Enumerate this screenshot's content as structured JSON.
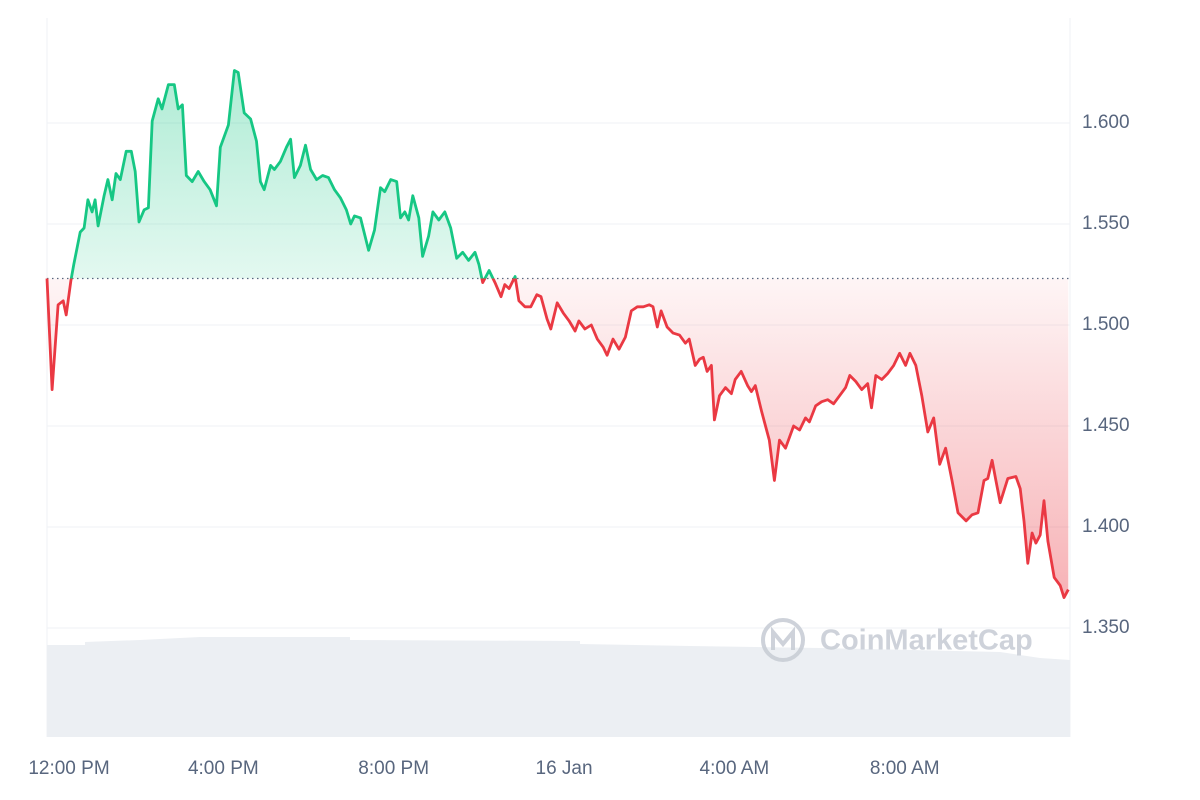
{
  "chart_data": {
    "type": "line",
    "watermark": "CoinMarketCap",
    "baseline": 1.523,
    "up_color": "#16c784",
    "down_color": "#ea3943",
    "xlim": [
      -0.14,
      23.88
    ],
    "xticks": [
      {
        "value": 0,
        "label": "12:00 PM"
      },
      {
        "value": 4,
        "label": "4:00 PM"
      },
      {
        "value": 8,
        "label": "8:00 PM"
      },
      {
        "value": 12,
        "label": "16 Jan"
      },
      {
        "value": 16,
        "label": "4:00 AM"
      },
      {
        "value": 20,
        "label": "8:00 AM"
      }
    ],
    "ylim": [
      1.296,
      1.652
    ],
    "yticks": [
      {
        "value": 1.35,
        "label": "1.350"
      },
      {
        "value": 1.4,
        "label": "1.400"
      },
      {
        "value": 1.45,
        "label": "1.450"
      },
      {
        "value": 1.5,
        "label": "1.500"
      },
      {
        "value": 1.55,
        "label": "1.550"
      },
      {
        "value": 1.6,
        "label": "1.600"
      }
    ],
    "grid": true,
    "x": [
      -0.14,
      -0.02,
      0.12,
      0.24,
      0.31,
      0.42,
      0.49,
      0.64,
      0.73,
      0.82,
      0.92,
      0.99,
      1.06,
      1.2,
      1.29,
      1.39,
      1.48,
      1.58,
      1.72,
      1.84,
      1.93,
      2.02,
      2.14,
      2.24,
      2.33,
      2.47,
      2.56,
      2.71,
      2.85,
      2.94,
      3.04,
      3.13,
      3.27,
      3.41,
      3.55,
      3.69,
      3.84,
      3.93,
      4.12,
      4.26,
      4.35,
      4.49,
      4.64,
      4.78,
      4.87,
      4.96,
      5.11,
      5.2,
      5.34,
      5.48,
      5.58,
      5.67,
      5.81,
      5.93,
      6.05,
      6.19,
      6.33,
      6.47,
      6.61,
      6.75,
      6.89,
      6.99,
      7.08,
      7.22,
      7.41,
      7.55,
      7.69,
      7.79,
      7.93,
      8.07,
      8.16,
      8.26,
      8.35,
      8.45,
      8.59,
      8.68,
      8.82,
      8.92,
      9.06,
      9.2,
      9.34,
      9.48,
      9.62,
      9.76,
      9.91,
      10.0,
      10.09,
      10.24,
      10.38,
      10.52,
      10.61,
      10.71,
      10.85,
      10.94,
      11.08,
      11.22,
      11.36,
      11.46,
      11.6,
      11.69,
      11.84,
      11.98,
      12.12,
      12.26,
      12.35,
      12.49,
      12.64,
      12.78,
      12.92,
      13.01,
      13.15,
      13.29,
      13.44,
      13.58,
      13.72,
      13.86,
      14.0,
      14.09,
      14.19,
      14.28,
      14.42,
      14.56,
      14.71,
      14.85,
      14.94,
      15.08,
      15.18,
      15.27,
      15.36,
      15.46,
      15.53,
      15.65,
      15.79,
      15.93,
      16.02,
      16.16,
      16.31,
      16.4,
      16.49,
      16.64,
      16.82,
      16.94,
      17.06,
      17.2,
      17.39,
      17.53,
      17.67,
      17.76,
      17.91,
      18.05,
      18.19,
      18.33,
      18.47,
      18.61,
      18.71,
      18.85,
      18.99,
      19.13,
      19.22,
      19.32,
      19.46,
      19.6,
      19.74,
      19.88,
      20.02,
      20.12,
      20.26,
      20.4,
      20.54,
      20.68,
      20.82,
      20.96,
      21.11,
      21.25,
      21.44,
      21.58,
      21.72,
      21.86,
      21.95,
      22.05,
      22.14,
      22.24,
      22.42,
      22.61,
      22.71,
      22.8,
      22.89,
      22.99,
      23.08,
      23.18,
      23.27,
      23.36,
      23.51,
      23.65,
      23.74,
      23.84
    ],
    "values": [
      1.523,
      1.468,
      1.51,
      1.512,
      1.505,
      1.522,
      1.53,
      1.546,
      1.548,
      1.562,
      1.556,
      1.562,
      1.549,
      1.564,
      1.572,
      1.562,
      1.575,
      1.572,
      1.586,
      1.586,
      1.576,
      1.551,
      1.557,
      1.558,
      1.601,
      1.612,
      1.607,
      1.619,
      1.619,
      1.607,
      1.609,
      1.574,
      1.571,
      1.576,
      1.571,
      1.567,
      1.559,
      1.588,
      1.599,
      1.626,
      1.625,
      1.605,
      1.602,
      1.591,
      1.571,
      1.567,
      1.579,
      1.577,
      1.581,
      1.588,
      1.592,
      1.573,
      1.579,
      1.589,
      1.577,
      1.572,
      1.574,
      1.573,
      1.567,
      1.563,
      1.557,
      1.55,
      1.554,
      1.553,
      1.537,
      1.547,
      1.568,
      1.566,
      1.572,
      1.571,
      1.553,
      1.556,
      1.552,
      1.564,
      1.553,
      1.534,
      1.544,
      1.556,
      1.552,
      1.556,
      1.548,
      1.533,
      1.536,
      1.532,
      1.536,
      1.53,
      1.521,
      1.527,
      1.521,
      1.514,
      1.52,
      1.518,
      1.524,
      1.512,
      1.509,
      1.509,
      1.515,
      1.514,
      1.503,
      1.498,
      1.511,
      1.506,
      1.502,
      1.497,
      1.502,
      1.498,
      1.5,
      1.493,
      1.489,
      1.485,
      1.493,
      1.488,
      1.494,
      1.507,
      1.509,
      1.509,
      1.51,
      1.509,
      1.499,
      1.507,
      1.499,
      1.496,
      1.495,
      1.491,
      1.493,
      1.48,
      1.483,
      1.484,
      1.477,
      1.48,
      1.453,
      1.465,
      1.469,
      1.466,
      1.473,
      1.477,
      1.47,
      1.467,
      1.47,
      1.457,
      1.443,
      1.423,
      1.443,
      1.439,
      1.45,
      1.448,
      1.454,
      1.452,
      1.46,
      1.462,
      1.463,
      1.461,
      1.465,
      1.469,
      1.475,
      1.472,
      1.468,
      1.471,
      1.459,
      1.475,
      1.473,
      1.476,
      1.48,
      1.486,
      1.48,
      1.486,
      1.48,
      1.465,
      1.447,
      1.454,
      1.431,
      1.439,
      1.423,
      1.407,
      1.403,
      1.406,
      1.407,
      1.423,
      1.424,
      1.433,
      1.423,
      1.412,
      1.424,
      1.425,
      1.419,
      1.403,
      1.382,
      1.397,
      1.392,
      1.396,
      1.413,
      1.393,
      1.375,
      1.371,
      1.365,
      1.369
    ]
  }
}
